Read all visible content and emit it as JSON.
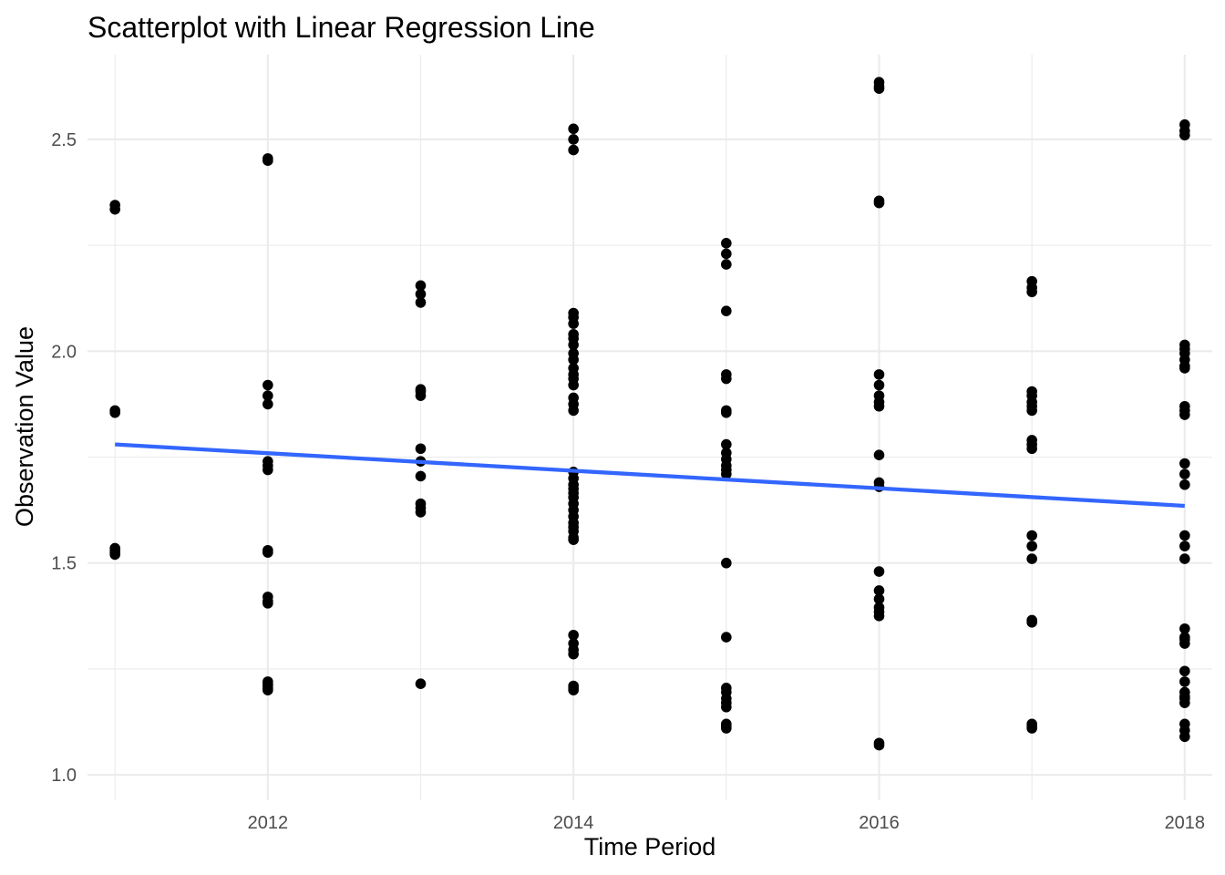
{
  "chart_data": {
    "type": "scatter",
    "title": "Scatterplot with Linear Regression Line",
    "xlabel": "Time Period",
    "ylabel": "Observation Value",
    "xlim": [
      2010.82,
      2018.18
    ],
    "ylim": [
      0.94,
      2.7
    ],
    "x_ticks": [
      2012,
      2014,
      2016,
      2018
    ],
    "x_tick_labels": [
      "2012",
      "2014",
      "2016",
      "2018"
    ],
    "x_minor_ticks": [
      2011,
      2013,
      2015,
      2017
    ],
    "y_ticks": [
      1.0,
      1.5,
      2.0,
      2.5
    ],
    "y_tick_labels": [
      "1.0",
      "1.5",
      "2.0",
      "2.5"
    ],
    "y_minor_ticks": [
      1.25,
      1.75,
      2.25
    ],
    "grid": true,
    "legend": "none",
    "point_color": "#000000",
    "regression_color": "#3366ff",
    "regression_line": {
      "x": [
        2011,
        2018
      ],
      "y": [
        1.78,
        1.635
      ]
    },
    "series": [
      {
        "x": [
          2011,
          2011,
          2011,
          2011,
          2011,
          2011,
          2011,
          2011,
          2012,
          2012,
          2012,
          2012,
          2012,
          2012,
          2012,
          2012,
          2012,
          2012,
          2012,
          2012,
          2012,
          2012,
          2012,
          2012,
          2012,
          2012,
          2013,
          2013,
          2013,
          2013,
          2013,
          2013,
          2013,
          2013,
          2013,
          2013,
          2013,
          2013,
          2013,
          2014,
          2014,
          2014,
          2014,
          2014,
          2014,
          2014,
          2014,
          2014,
          2014,
          2014,
          2014,
          2014,
          2014,
          2014,
          2014,
          2014,
          2014,
          2014,
          2014,
          2014,
          2014,
          2014,
          2014,
          2014,
          2014,
          2014,
          2014,
          2014,
          2014,
          2014,
          2014,
          2014,
          2014,
          2014,
          2014,
          2014,
          2014,
          2014,
          2015,
          2015,
          2015,
          2015,
          2015,
          2015,
          2015,
          2015,
          2015,
          2015,
          2015,
          2015,
          2015,
          2015,
          2015,
          2015,
          2015,
          2015,
          2015,
          2015,
          2015,
          2015,
          2015,
          2015,
          2016,
          2016,
          2016,
          2016,
          2016,
          2016,
          2016,
          2016,
          2016,
          2016,
          2016,
          2016,
          2016,
          2016,
          2016,
          2016,
          2016,
          2016,
          2016,
          2016,
          2016,
          2017,
          2017,
          2017,
          2017,
          2017,
          2017,
          2017,
          2017,
          2017,
          2017,
          2017,
          2017,
          2017,
          2017,
          2017,
          2017,
          2017,
          2017,
          2017,
          2018,
          2018,
          2018,
          2018,
          2018,
          2018,
          2018,
          2018,
          2018,
          2018,
          2018,
          2018,
          2018,
          2018,
          2018,
          2018,
          2018,
          2018,
          2018,
          2018,
          2018,
          2018,
          2018,
          2018,
          2018,
          2018,
          2018,
          2018,
          2018,
          2018,
          2018
        ],
        "y": [
          2.345,
          2.335,
          1.86,
          1.855,
          1.535,
          1.53,
          1.525,
          1.52,
          2.455,
          2.45,
          1.92,
          1.895,
          1.875,
          1.74,
          1.73,
          1.72,
          1.53,
          1.525,
          1.42,
          1.41,
          1.405,
          1.22,
          1.215,
          1.21,
          1.205,
          1.2,
          2.155,
          2.135,
          2.115,
          1.91,
          1.905,
          1.895,
          1.77,
          1.74,
          1.705,
          1.64,
          1.63,
          1.62,
          1.215,
          2.525,
          2.5,
          2.475,
          2.09,
          2.08,
          2.065,
          2.04,
          2.03,
          2.015,
          1.995,
          1.98,
          1.96,
          1.945,
          1.935,
          1.92,
          1.89,
          1.875,
          1.86,
          1.715,
          1.7,
          1.685,
          1.675,
          1.665,
          1.655,
          1.64,
          1.625,
          1.61,
          1.595,
          1.585,
          1.575,
          1.56,
          1.555,
          1.33,
          1.31,
          1.295,
          1.285,
          1.21,
          1.205,
          1.2,
          2.255,
          2.23,
          2.205,
          2.095,
          1.945,
          1.935,
          1.86,
          1.855,
          1.78,
          1.76,
          1.745,
          1.73,
          1.72,
          1.71,
          1.5,
          1.325,
          1.205,
          1.195,
          1.18,
          1.17,
          1.16,
          1.12,
          1.115,
          1.11,
          2.635,
          2.625,
          2.62,
          2.355,
          2.35,
          1.945,
          1.92,
          1.895,
          1.88,
          1.87,
          1.755,
          1.69,
          1.68,
          1.48,
          1.435,
          1.415,
          1.395,
          1.385,
          1.375,
          1.075,
          1.07,
          2.165,
          2.15,
          2.14,
          1.905,
          1.895,
          1.88,
          1.87,
          1.86,
          1.79,
          1.78,
          1.77,
          1.565,
          1.54,
          1.51,
          1.365,
          1.36,
          1.12,
          1.115,
          1.11,
          2.535,
          2.52,
          2.51,
          2.015,
          2.005,
          1.995,
          1.98,
          1.965,
          1.96,
          1.87,
          1.86,
          1.85,
          1.735,
          1.71,
          1.685,
          1.565,
          1.54,
          1.51,
          1.345,
          1.325,
          1.32,
          1.31,
          1.245,
          1.22,
          1.195,
          1.185,
          1.18,
          1.17,
          1.12,
          1.105,
          1.09
        ]
      }
    ]
  }
}
